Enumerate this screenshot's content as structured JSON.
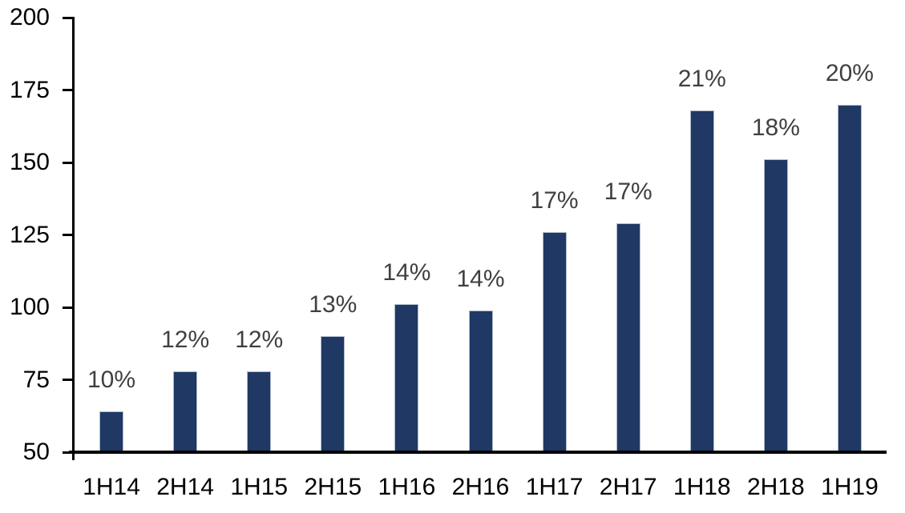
{
  "chart_data": {
    "type": "bar",
    "categories": [
      "1H14",
      "2H14",
      "1H15",
      "2H15",
      "1H16",
      "2H16",
      "1H17",
      "2H17",
      "1H18",
      "2H18",
      "1H19"
    ],
    "values": [
      64,
      78,
      78,
      90,
      101,
      99,
      126,
      129,
      168,
      151,
      170
    ],
    "bar_labels": [
      "10%",
      "12%",
      "12%",
      "13%",
      "14%",
      "14%",
      "17%",
      "17%",
      "21%",
      "18%",
      "20%"
    ],
    "title": "",
    "xlabel": "",
    "ylabel": "",
    "ylim": [
      50,
      200
    ],
    "y_ticks": [
      50,
      75,
      100,
      125,
      150,
      175,
      200
    ],
    "grid": false,
    "legend": false,
    "colors": {
      "bar_fill": "#1F3864",
      "bar_border": "#AEBACB",
      "data_label": "#404040",
      "axis_text": "#000000",
      "axis_line": "#000000",
      "background": "#FFFFFF"
    }
  }
}
